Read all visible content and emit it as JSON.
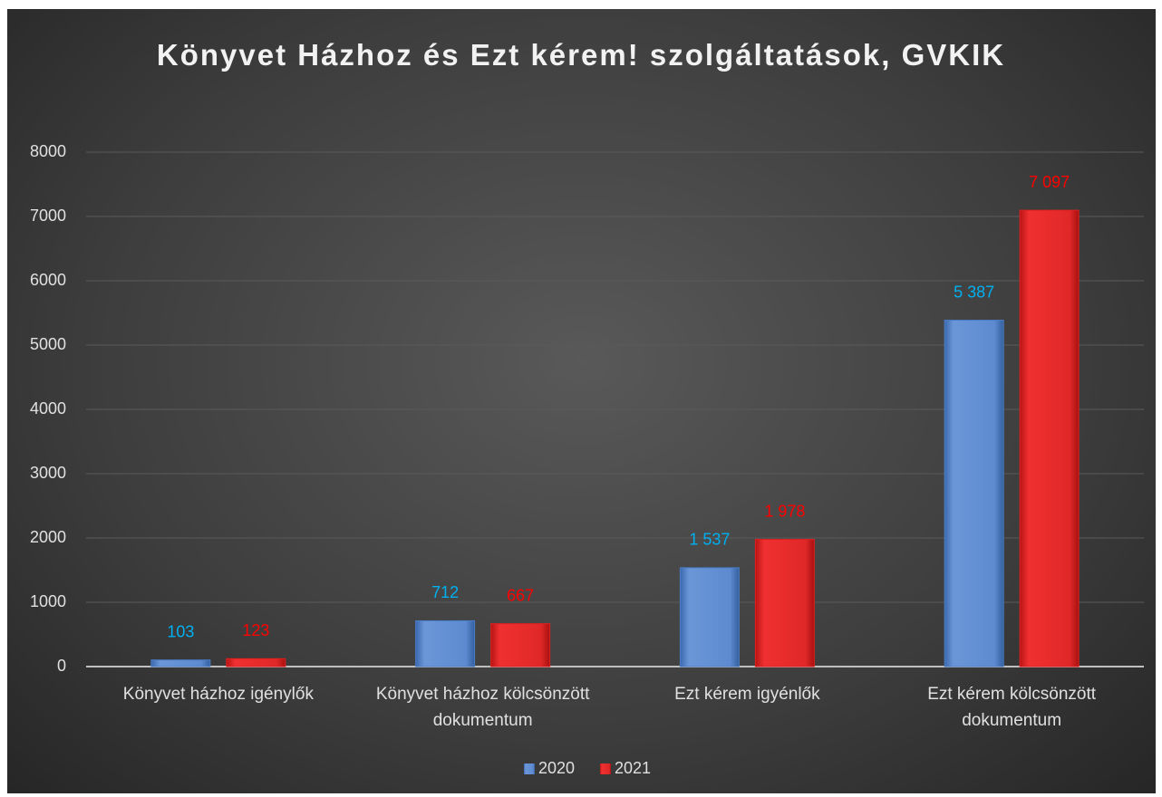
{
  "chart_data": {
    "type": "bar",
    "title": "Könyvet Házhoz és Ezt kérem! szolgáltatások, GVKIK",
    "categories": [
      "Könyvet házhoz igénylők",
      "Könyvet házhoz kölcsönzött dokumentum",
      "Ezt kérem igyénlők",
      "Ezt kérem kölcsönzött dokumentum"
    ],
    "series": [
      {
        "name": "2020",
        "color": "#4a7cc7",
        "label_color": "#00b0f0",
        "values": [
          103,
          712,
          1537,
          5387
        ],
        "value_labels": [
          "103",
          "712",
          "1 537",
          "5 387"
        ]
      },
      {
        "name": "2021",
        "color": "#e01f1f",
        "label_color": "#ff0000",
        "values": [
          123,
          667,
          1978,
          7097
        ],
        "value_labels": [
          "123",
          "667",
          "1 978",
          "7 097"
        ]
      }
    ],
    "ylim": [
      0,
      8000
    ],
    "yticks": [
      0,
      1000,
      2000,
      3000,
      4000,
      5000,
      6000,
      7000,
      8000
    ],
    "grid": true,
    "legend": "bottom"
  }
}
